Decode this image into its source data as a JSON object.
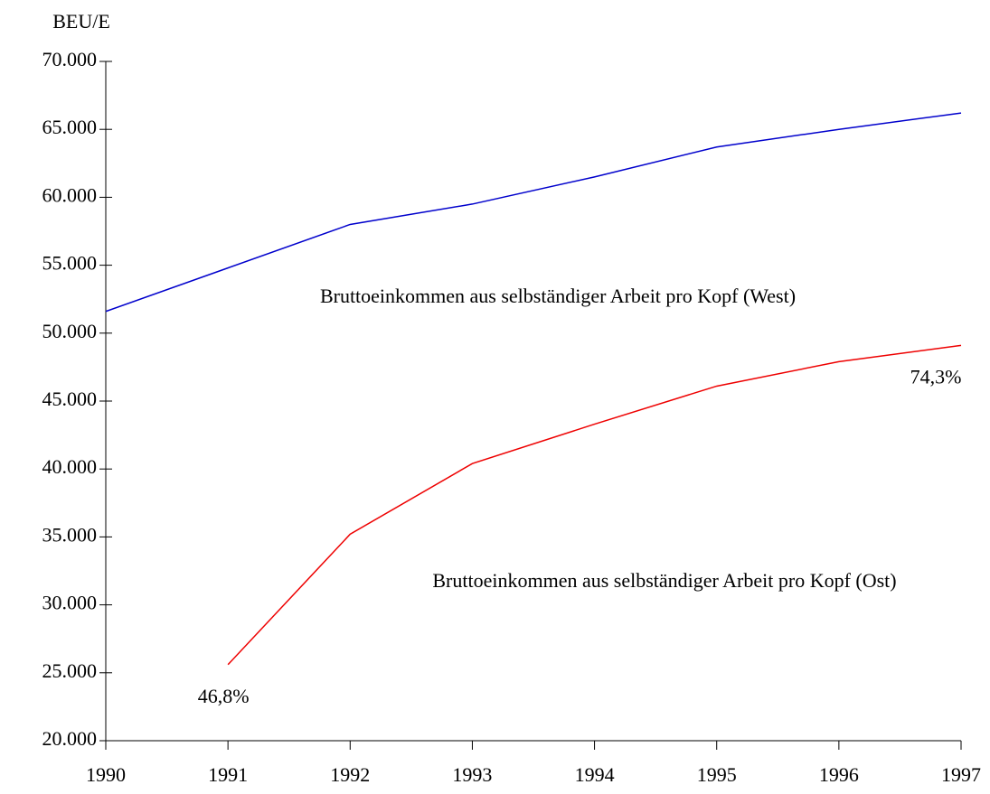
{
  "chart_data": {
    "type": "line",
    "y_label": "BEU/E",
    "x": [
      1990,
      1991,
      1992,
      1993,
      1994,
      1995,
      1996,
      1997
    ],
    "series": [
      {
        "name": "Bruttoeinkommen aus selbständiger Arbeit pro Kopf (West)",
        "color": "#0000cc",
        "values": [
          51600,
          54800,
          58000,
          59500,
          61500,
          63700,
          65000,
          66200
        ]
      },
      {
        "name": "Bruttoeinkommen aus selbständiger Arbeit pro Kopf (Ost)",
        "color": "#ee0000",
        "values": [
          null,
          25600,
          35200,
          40400,
          43300,
          46100,
          47900,
          49100
        ]
      }
    ],
    "annotations": [
      "46,8%",
      "74,3%"
    ],
    "xlim": [
      1990,
      1997
    ],
    "xticks": [
      1990,
      1991,
      1992,
      1993,
      1994,
      1995,
      1996,
      1997
    ],
    "ylim": [
      20000,
      70000
    ],
    "yticks": [
      {
        "value": 20000,
        "label": "20.000"
      },
      {
        "value": 25000,
        "label": "25.000"
      },
      {
        "value": 30000,
        "label": "30.000"
      },
      {
        "value": 35000,
        "label": "35.000"
      },
      {
        "value": 40000,
        "label": "40.000"
      },
      {
        "value": 45000,
        "label": "45.000"
      },
      {
        "value": 50000,
        "label": "50.000"
      },
      {
        "value": 55000,
        "label": "55.000"
      },
      {
        "value": 60000,
        "label": "60.000"
      },
      {
        "value": 65000,
        "label": "65.000"
      },
      {
        "value": 70000,
        "label": "70.000"
      }
    ],
    "grid": false
  }
}
